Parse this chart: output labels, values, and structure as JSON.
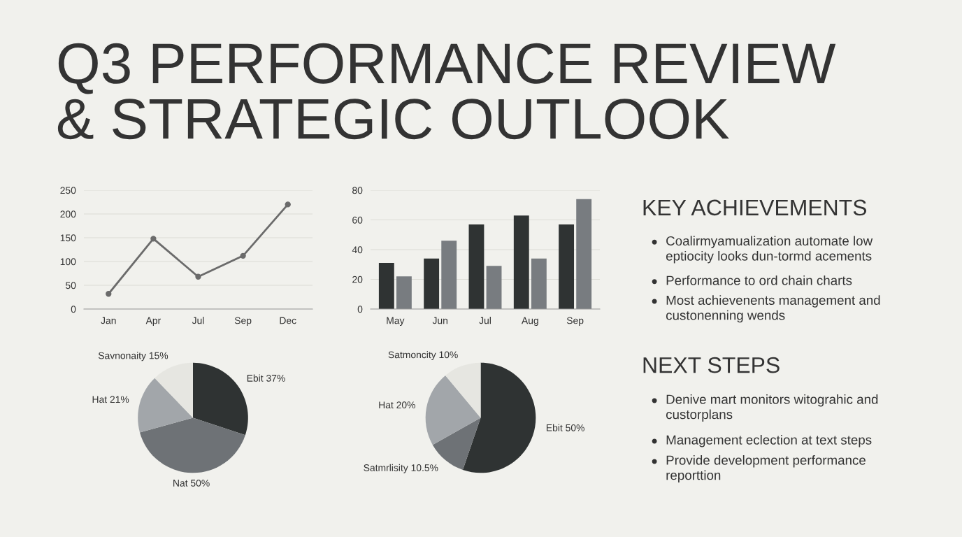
{
  "chart_data": [
    {
      "type": "other",
      "title": "Q3 PERFORMANCE REVIEW\n& STRATEGIC OUTLOOK"
    },
    {
      "type": "line",
      "categories": [
        "Jan",
        "Apr",
        "Jul",
        "Sep",
        "Dec"
      ],
      "series": [
        {
          "color": "#6b6b6b",
          "values": [
            32,
            148,
            68,
            112,
            220
          ]
        }
      ],
      "ylim": [
        0,
        250
      ],
      "yticks": [
        0,
        50,
        100,
        150,
        200,
        250
      ],
      "grid": "y",
      "marker": "circle",
      "line_style": "solid"
    },
    {
      "type": "bar",
      "categories": [
        "May",
        "Jun",
        "Jul",
        "Aug",
        "Sep"
      ],
      "series": [
        {
          "color": "#2f3333",
          "values": [
            31,
            34,
            57,
            63,
            57
          ]
        },
        {
          "color": "#787c80",
          "values": [
            22,
            46,
            29,
            34,
            74
          ]
        }
      ],
      "ylim": [
        0,
        80
      ],
      "yticks": [
        0,
        20,
        40,
        60,
        80
      ],
      "grid": "y"
    },
    {
      "type": "pie",
      "categories": [
        "Ebit",
        "Nat",
        "Hat",
        "Savnonaity"
      ],
      "values": [
        37,
        50,
        21,
        15
      ],
      "value_labels": [
        "37%",
        "50%",
        "21%",
        "15%"
      ],
      "colors": [
        "#2f3333",
        "#6e7276",
        "#a2a6aa",
        "#e6e6e1"
      ]
    },
    {
      "type": "pie",
      "categories": [
        "Ebit",
        "Satmrlisity",
        "Hat",
        "Satmoncity"
      ],
      "values": [
        50,
        10.5,
        20,
        10
      ],
      "value_labels": [
        "50%",
        "10.5%",
        "20%",
        "10%"
      ],
      "colors": [
        "#2f3333",
        "#6e7276",
        "#a2a6aa",
        "#e6e6e1"
      ]
    },
    {
      "type": "other",
      "title": "KEY ACHIEVEMENTS",
      "annotations": [
        "Coalirmyamualization automate low\neptiocity looks dun-tormd acements",
        "Performance to ord chain charts",
        "Most achievenents management and\ncustonenning wends"
      ]
    },
    {
      "type": "other",
      "title": "NEXT STEPS",
      "annotations": [
        "Denive mart monitors witograhic and\ncustorplans",
        "Management eclection at text steps",
        "Provide development performance\nreporttion"
      ]
    }
  ]
}
